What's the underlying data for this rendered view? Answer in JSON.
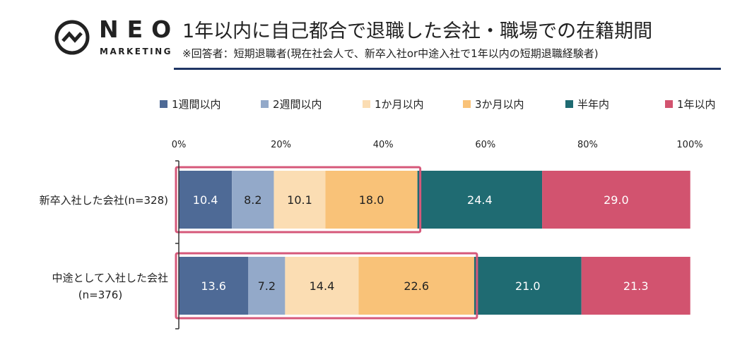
{
  "logo": {
    "word": "NEO",
    "sub": "MARKETING"
  },
  "title": "1年以内に自己都合で退職した会社・職場での在籍期間",
  "subtitle": "※回答者：短期退職者(現在社会人で、新卒入社or中途入社で1年以内の短期退職経験者)",
  "colors": {
    "title_rule": "#1f3564",
    "highlight": "#d6587a",
    "axis": "#333333"
  },
  "chart_data": {
    "type": "bar",
    "orientation": "horizontal",
    "stacked": true,
    "xlim": [
      0,
      100
    ],
    "ticks": [
      "0%",
      "20%",
      "40%",
      "60%",
      "80%",
      "100%"
    ],
    "tick_values": [
      0,
      20,
      40,
      60,
      80,
      100
    ],
    "legend_position": "top",
    "categories": [
      [
        "新卒入社した会社(n=328)"
      ],
      [
        "中途として入社した会社",
        "(n=376)"
      ]
    ],
    "series": [
      {
        "name": "1週間以内",
        "color": "#4e6a96",
        "label_color": "#ffffff",
        "values": [
          10.4,
          13.6
        ]
      },
      {
        "name": "2週間以内",
        "color": "#93a9c9",
        "label_color": "#222222",
        "values": [
          8.2,
          7.2
        ]
      },
      {
        "name": "1か月以内",
        "color": "#fbddb3",
        "label_color": "#222222",
        "values": [
          10.1,
          14.4
        ]
      },
      {
        "name": "3か月以内",
        "color": "#f9c278",
        "label_color": "#222222",
        "values": [
          18.0,
          22.6
        ]
      },
      {
        "name": "半年内",
        "color": "#1f6b72",
        "label_color": "#ffffff",
        "values": [
          24.4,
          21.0
        ]
      },
      {
        "name": "1年以内",
        "color": "#d2536f",
        "label_color": "#ffffff",
        "values": [
          29.0,
          21.3
        ]
      }
    ],
    "value_labels": [
      [
        "10.4",
        "8.2",
        "10.1",
        "18.0",
        "24.4",
        "29.0"
      ],
      [
        "13.6",
        "7.2",
        "14.4",
        "22.6",
        "21.0",
        "21.3"
      ]
    ],
    "highlight_through_series": 3
  }
}
